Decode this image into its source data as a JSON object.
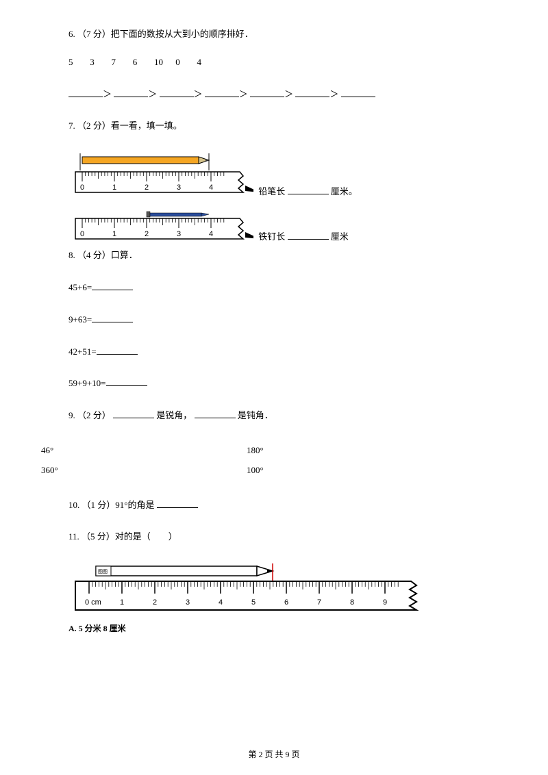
{
  "q6": {
    "prefix": "6. （7 分）把下面的数按从大到小的顺序排好．",
    "numbers": [
      "5",
      "3",
      "7",
      "6",
      "10",
      "0",
      "4"
    ],
    "sep": "＞"
  },
  "q7": {
    "prefix": "7. （2 分）看一看，填一填。",
    "ruler1": {
      "ticks": [
        "0",
        "1",
        "2",
        "3",
        "4"
      ],
      "pencil_color": "#f5a623",
      "tip_color": "#444444",
      "ruler_body": "#ffffff",
      "label_pre": "铅笔长",
      "label_post": "厘米。"
    },
    "ruler2": {
      "ticks": [
        "0",
        "1",
        "2",
        "3",
        "4"
      ],
      "nail_body": "#2a4d9b",
      "nail_tip": "#444444",
      "ruler_body": "#ffffff",
      "label_pre": "铁钉长",
      "label_post": "厘米"
    }
  },
  "q8": {
    "prefix": "8. （4 分）口算．",
    "items": [
      "45+6=",
      "9+63=",
      "42+51=",
      "59+9+10="
    ]
  },
  "q9": {
    "prefix_a": "9. （2 分）",
    "mid1": "是锐角，",
    "mid2": "是钝角．",
    "angles": [
      [
        "46°",
        "180°"
      ],
      [
        "360°",
        "100°"
      ]
    ]
  },
  "q10": {
    "prefix": "10. （1 分）91°的角是"
  },
  "q11": {
    "prefix": "11. （5 分）对的是（　　）",
    "ruler": {
      "ticks_cm": [
        "0 cm",
        "1",
        "2",
        "3",
        "4",
        "5",
        "6",
        "7",
        "8",
        "9"
      ],
      "pencil_outline": "#000000",
      "pencil_fill": "#ffffff",
      "ruler_body": "#ffffff"
    },
    "optA": "A. 5 分米 8 厘米"
  },
  "footer": {
    "text": "第 2 页 共 9 页"
  },
  "colors": {
    "stroke": "#000000",
    "ruler_torn": "#000000"
  }
}
